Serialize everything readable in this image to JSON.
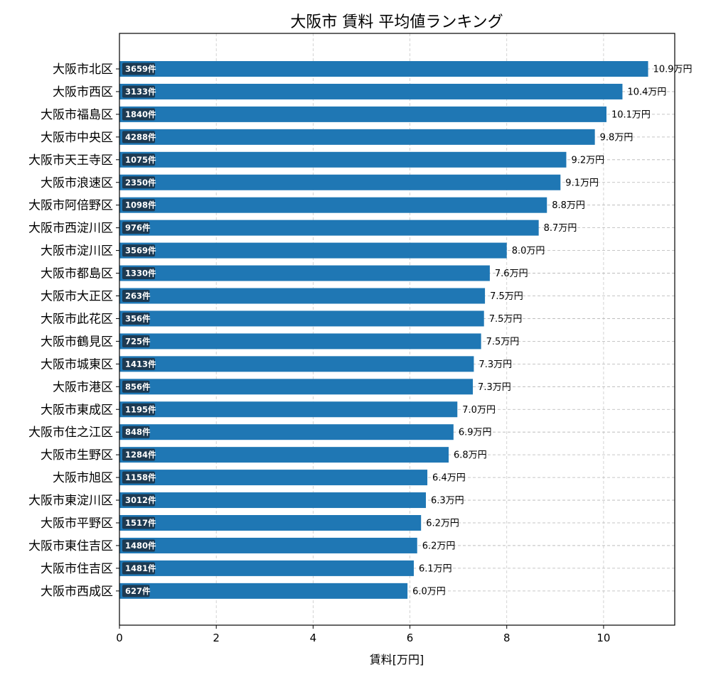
{
  "chart_data": {
    "type": "bar",
    "orientation": "horizontal",
    "title": "大阪市 賃料 平均値ランキング",
    "xlabel": "賃料[万円]",
    "ylabel": "",
    "xlim": [
      0,
      11.47
    ],
    "xticks": [
      0,
      2,
      4,
      6,
      8,
      10
    ],
    "grid": true,
    "bar_color": "#1f77b4",
    "badge_color": "#1d3a52",
    "categories": [
      "大阪市北区",
      "大阪市西区",
      "大阪市福島区",
      "大阪市中央区",
      "大阪市天王寺区",
      "大阪市浪速区",
      "大阪市阿倍野区",
      "大阪市西淀川区",
      "大阪市淀川区",
      "大阪市都島区",
      "大阪市大正区",
      "大阪市此花区",
      "大阪市鶴見区",
      "大阪市城東区",
      "大阪市港区",
      "大阪市東成区",
      "大阪市住之江区",
      "大阪市生野区",
      "大阪市旭区",
      "大阪市東淀川区",
      "大阪市平野区",
      "大阪市東住吉区",
      "大阪市住吉区",
      "大阪市西成区"
    ],
    "values": [
      10.92,
      10.39,
      10.06,
      9.82,
      9.23,
      9.11,
      8.83,
      8.66,
      8.0,
      7.65,
      7.55,
      7.53,
      7.47,
      7.32,
      7.3,
      6.98,
      6.9,
      6.8,
      6.36,
      6.33,
      6.23,
      6.15,
      6.08,
      5.95
    ],
    "value_labels": [
      "10.9万円",
      "10.4万円",
      "10.1万円",
      "9.8万円",
      "9.2万円",
      "9.1万円",
      "8.8万円",
      "8.7万円",
      "8.0万円",
      "7.6万円",
      "7.5万円",
      "7.5万円",
      "7.5万円",
      "7.3万円",
      "7.3万円",
      "7.0万円",
      "6.9万円",
      "6.8万円",
      "6.4万円",
      "6.3万円",
      "6.2万円",
      "6.2万円",
      "6.1万円",
      "6.0万円"
    ],
    "count_labels": [
      "3659件",
      "3133件",
      "1840件",
      "4288件",
      "1075件",
      "2350件",
      "1098件",
      "976件",
      "3569件",
      "1330件",
      "263件",
      "356件",
      "725件",
      "1413件",
      "856件",
      "1195件",
      "848件",
      "1284件",
      "1158件",
      "3012件",
      "1517件",
      "1480件",
      "1481件",
      "627件"
    ]
  }
}
